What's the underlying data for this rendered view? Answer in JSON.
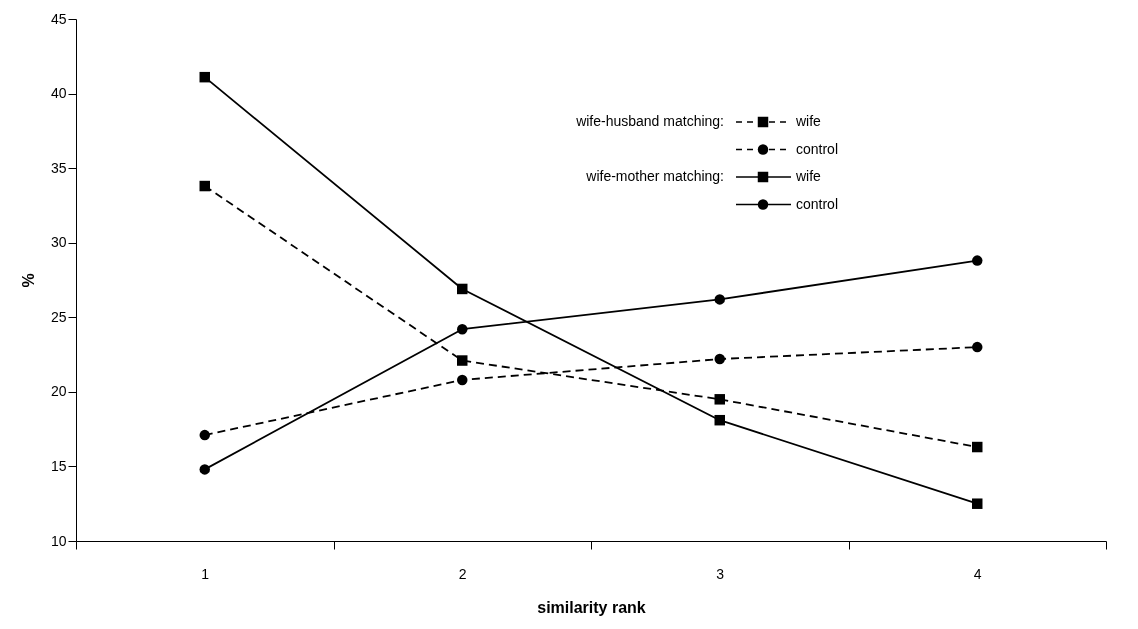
{
  "chart_data": {
    "type": "line",
    "xlabel": "similarity rank",
    "ylabel": "%",
    "categories": [
      "1",
      "2",
      "3",
      "4"
    ],
    "ylim": [
      10,
      45
    ],
    "yticks": [
      10,
      15,
      20,
      25,
      30,
      35,
      40,
      45
    ],
    "grid": false,
    "legend": "top right",
    "annotations": [
      "wife-husband matching:",
      "wife-mother matching:"
    ],
    "series": [
      {
        "name": "wife",
        "color": "#000000",
        "line_style": "dashed",
        "marker": "square",
        "values": [
          33.8,
          22.1,
          19.5,
          16.3
        ]
      },
      {
        "name": "control",
        "color": "#000000",
        "line_style": "dashed",
        "marker": "circle",
        "values": [
          17.1,
          20.8,
          22.2,
          23.0
        ]
      },
      {
        "name": "wife",
        "color": "#000000",
        "line_style": "solid",
        "marker": "square",
        "values": [
          41.1,
          26.9,
          18.1,
          12.5
        ]
      },
      {
        "name": "control",
        "color": "#000000",
        "line_style": "solid",
        "marker": "circle",
        "values": [
          14.8,
          24.2,
          26.2,
          28.8
        ]
      }
    ]
  }
}
